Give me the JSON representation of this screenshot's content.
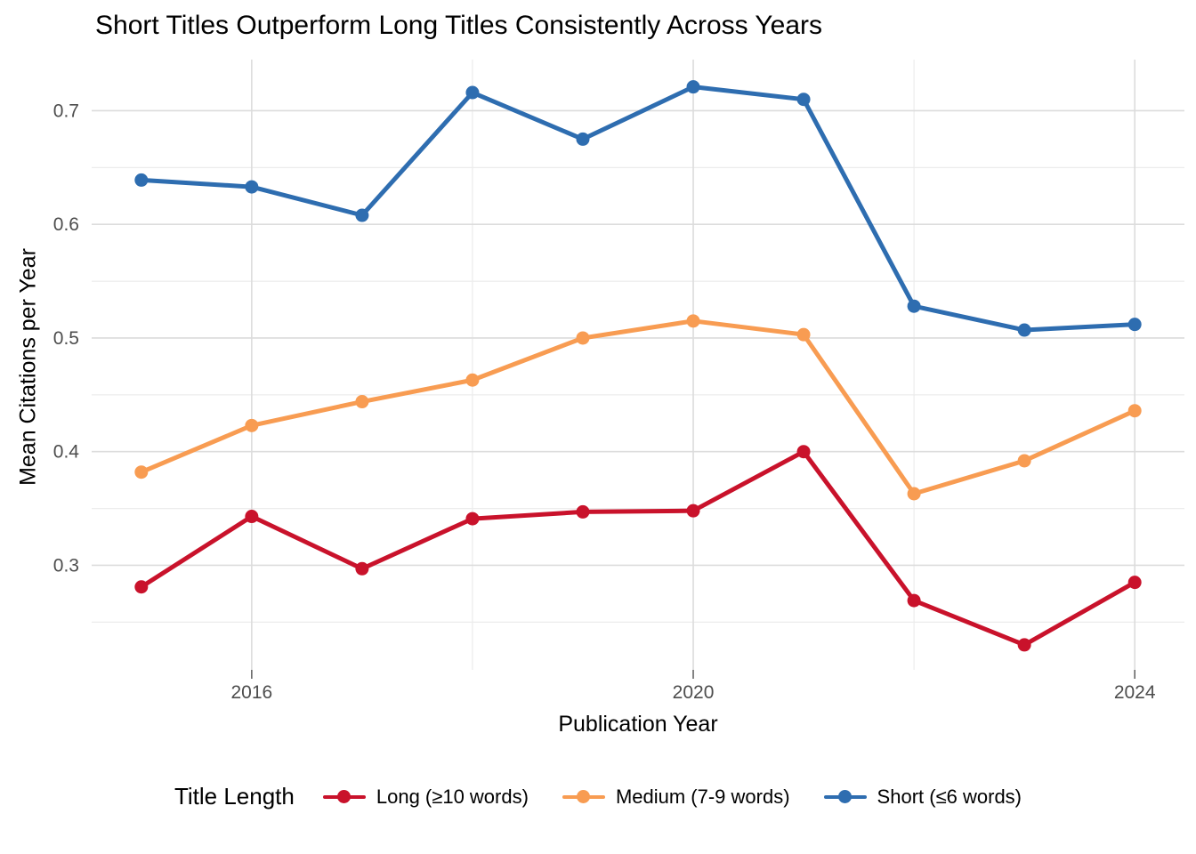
{
  "chart_data": {
    "type": "line",
    "title": "Short Titles Outperform Long Titles Consistently Across Years",
    "xlabel": "Publication Year",
    "ylabel": "Mean Citations per Year",
    "legend_title": "Title Length",
    "legend_position": "bottom",
    "grid": true,
    "x": [
      2015,
      2016,
      2017,
      2018,
      2019,
      2020,
      2021,
      2022,
      2023,
      2024
    ],
    "xlim": [
      2014.55,
      2024.45
    ],
    "ylim": [
      0.208,
      0.745
    ],
    "x_ticks": {
      "major": [
        {
          "v": 2016,
          "label": "2016"
        },
        {
          "v": 2020,
          "label": "2020"
        },
        {
          "v": 2024,
          "label": "2024"
        }
      ],
      "minor": [
        2018,
        2022
      ]
    },
    "y_ticks": {
      "major": [
        {
          "v": 0.3,
          "label": "0.3"
        },
        {
          "v": 0.4,
          "label": "0.4"
        },
        {
          "v": 0.5,
          "label": "0.5"
        },
        {
          "v": 0.6,
          "label": "0.6"
        },
        {
          "v": 0.7,
          "label": "0.7"
        }
      ],
      "minor": [
        0.25,
        0.35,
        0.45,
        0.55,
        0.65
      ]
    },
    "series": [
      {
        "name": "Long (≥10 words)",
        "color": "#C9122B",
        "values": [
          0.281,
          0.343,
          0.297,
          0.341,
          0.347,
          0.348,
          0.4,
          0.269,
          0.23,
          0.285
        ]
      },
      {
        "name": "Medium (7-9 words)",
        "color": "#F89C52",
        "values": [
          0.382,
          0.423,
          0.444,
          0.463,
          0.5,
          0.515,
          0.503,
          0.363,
          0.392,
          0.436
        ]
      },
      {
        "name": "Short (≤6 words)",
        "color": "#2E6DB0",
        "values": [
          0.639,
          0.633,
          0.608,
          0.716,
          0.675,
          0.721,
          0.71,
          0.528,
          0.507,
          0.512
        ]
      }
    ],
    "style": {
      "grid_major_color": "#DCDCDC",
      "grid_minor_color": "#ECECEC",
      "tick_label_color": "#4D4D4D",
      "tick_mark_color": "#666666",
      "text_color": "#000000",
      "background": "#FFFFFF"
    }
  }
}
